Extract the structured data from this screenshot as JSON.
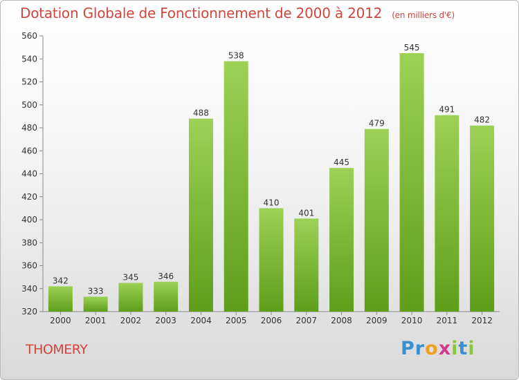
{
  "title": "Dotation Globale de Fonctionnement de 2000 à 2012",
  "subtitle": "(en milliers d'€)",
  "town": "THOMERY",
  "logo": {
    "letters": [
      {
        "char": "P",
        "color": "#3c8fcf"
      },
      {
        "char": "r",
        "color": "#3c8fcf"
      },
      {
        "char": "o",
        "color": "#f0a020"
      },
      {
        "char": "x",
        "color": "#d43a8a"
      },
      {
        "char": "i",
        "color": "#8cc63f"
      },
      {
        "char": "t",
        "color": "#3c8fcf"
      },
      {
        "char": "i",
        "color": "#8cc63f"
      }
    ]
  },
  "colors": {
    "bar_light": "#9cd155",
    "bar_dark": "#5e9e19",
    "title": "#d0453e",
    "axis": "#888888"
  },
  "chart_data": {
    "type": "bar",
    "title": "Dotation Globale de Fonctionnement de 2000 à 2012",
    "subtitle": "(en milliers d'€)",
    "categories": [
      "2000",
      "2001",
      "2002",
      "2003",
      "2004",
      "2005",
      "2006",
      "2007",
      "2008",
      "2009",
      "2010",
      "2011",
      "2012"
    ],
    "values": [
      342,
      333,
      345,
      346,
      488,
      538,
      410,
      401,
      445,
      479,
      545,
      491,
      482
    ],
    "ylim": [
      320,
      560
    ],
    "yticks": [
      320,
      340,
      360,
      380,
      400,
      420,
      440,
      460,
      480,
      500,
      520,
      540,
      560
    ],
    "grid": false,
    "legend": "none"
  }
}
